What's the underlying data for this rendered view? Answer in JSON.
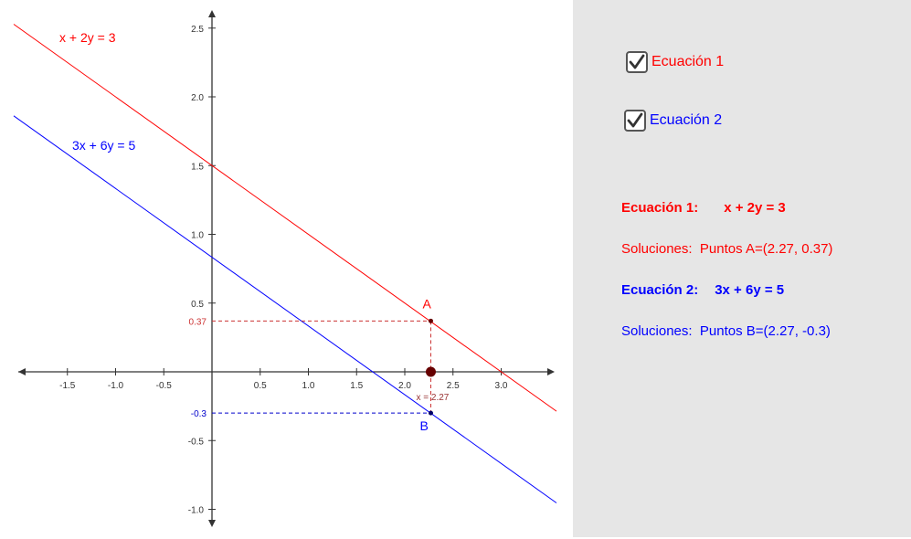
{
  "graph": {
    "x_ticks": [
      "-1.5",
      "-1.0",
      "-0.5",
      "0.5",
      "1.0",
      "1.5",
      "2.0",
      "2.5",
      "3.0"
    ],
    "y_ticks": [
      "2.5",
      "2.0",
      "1.5",
      "1.0",
      "0.5",
      "-0.5",
      "-1.0"
    ],
    "line1": {
      "label": "x + 2y = 3",
      "color": "#ff0000"
    },
    "line2": {
      "label": "3x + 6y = 5",
      "color": "#0000ff"
    },
    "point_a": {
      "name": "A",
      "x": 2.27,
      "y": 0.37,
      "y_label": "0.37"
    },
    "point_b": {
      "name": "B",
      "x": 2.27,
      "y": -0.3,
      "y_label": "-0.3"
    },
    "x_marker_label": "x = 2.27",
    "colors": {
      "axis": "#333333",
      "guide_red": "#cc3333",
      "guide_blue": "#0000cc",
      "point": "#660000"
    }
  },
  "panel": {
    "checkbox1": {
      "label": "Ecuación 1",
      "checked": true,
      "color": "#ff0000"
    },
    "checkbox2": {
      "label": "Ecuación 2",
      "checked": true,
      "color": "#0000ff"
    },
    "eq1_title": "Ecuación 1:",
    "eq1_expr": "x + 2y = 3",
    "sol1_prefix": "Soluciones:",
    "sol1_text": "Puntos A=(2.27, 0.37)",
    "eq2_title": "Ecuación 2:",
    "eq2_expr": "3x + 6y = 5",
    "sol2_prefix": "Soluciones:",
    "sol2_text": "Puntos B=(2.27, -0.3)"
  }
}
